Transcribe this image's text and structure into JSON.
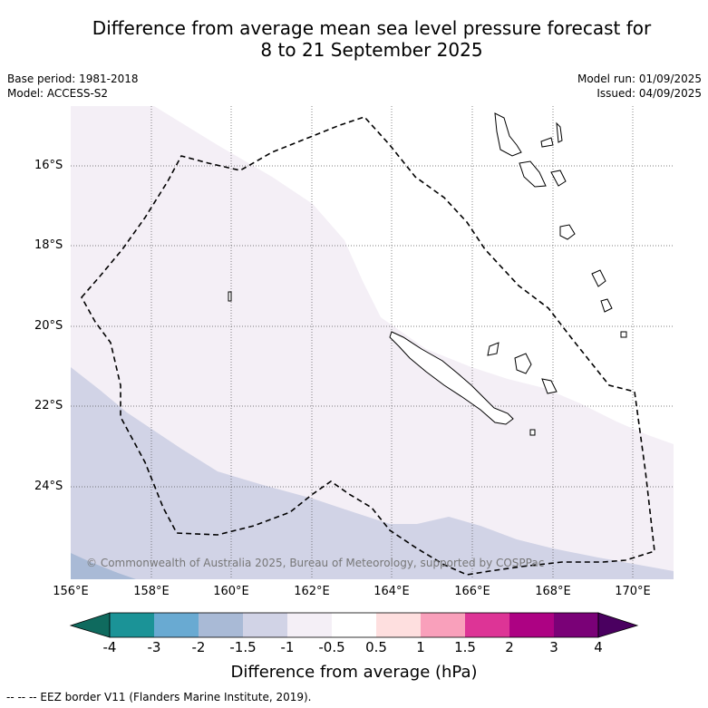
{
  "header": {
    "title_line1": "Difference from average mean sea level pressure forecast for",
    "title_line2": "8 to 21 September 2025",
    "base_period": "Base period: 1981-2018",
    "model": "Model: ACCESS-S2",
    "model_run": "Model run: 01/09/2025",
    "issued": "Issued: 04/09/2025"
  },
  "map": {
    "lat_ticks": [
      "16°S",
      "18°S",
      "20°S",
      "22°S",
      "24°S"
    ],
    "lon_ticks": [
      "156°E",
      "158°E",
      "160°E",
      "162°E",
      "164°E",
      "166°E",
      "168°E",
      "170°E"
    ],
    "copyright": "© Commonwealth of Australia 2025, Bureau of Meteorology, supported by COSPPac",
    "colors": {
      "band_minus1_to_minus05": "#f4eff6",
      "band_minus15_to_minus1": "#d1d3e6",
      "band_minus2_to_minus15": "#a9bad6",
      "background": "#ffffff"
    }
  },
  "colorbar": {
    "label": "Difference from average (hPa)",
    "ticks": [
      "-4",
      "-3",
      "-2",
      "-1.5",
      "-1",
      "-0.5",
      "0.5",
      "1",
      "1.5",
      "2",
      "3",
      "4"
    ],
    "colors": [
      "#0f6a5e",
      "#1b9397",
      "#69aad2",
      "#a9bad6",
      "#d1d3e6",
      "#f4eff6",
      "#ffffff",
      "#fedfdf",
      "#f9a0bb",
      "#dd3496",
      "#ad0283",
      "#7a0177",
      "#4a0060"
    ]
  },
  "footer": {
    "legend": "--  --  -- EEZ border V11 (Flanders Marine Institute, 2019)."
  }
}
